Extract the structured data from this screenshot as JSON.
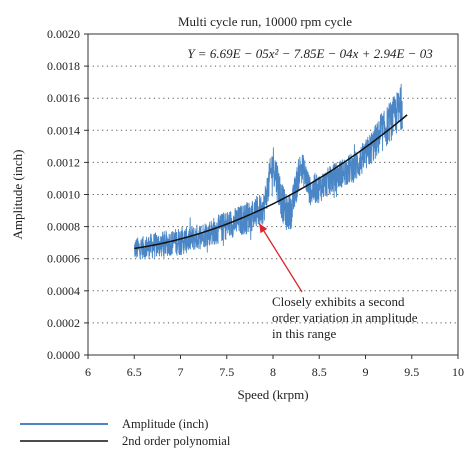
{
  "chart_data": {
    "type": "line",
    "title": "Multi cycle run, 10000 rpm cycle",
    "xlabel": "Speed (krpm)",
    "ylabel": "Amplitude (inch)",
    "xlim": [
      6,
      10
    ],
    "ylim": [
      0,
      0.002
    ],
    "xticks": [
      "6",
      "6.5",
      "7",
      "7.5",
      "8",
      "8.5",
      "9",
      "9.5",
      "10"
    ],
    "yticks": [
      "0.0000",
      "0.0002",
      "0.0004",
      "0.0006",
      "0.0008",
      "0.0010",
      "0.0012",
      "0.0014",
      "0.0016",
      "0.0018",
      "0.0020"
    ],
    "grid": "horizontal dotted",
    "legend_position": "below",
    "equation": "Y = 6.69E − 05x² − 7.85E − 04x + 2.94E − 03",
    "annotation": {
      "lines": [
        "Closely exhibits a second",
        "order variation in amplitude",
        "in this range"
      ],
      "arrow_color": "#d9282f",
      "target": {
        "x": 7.85,
        "y": 0.00082
      }
    },
    "series": [
      {
        "name": "Amplitude (inch)",
        "color": "#4a86c5",
        "style": "noisy measured signal",
        "envelope": {
          "x": [
            6.5,
            6.6,
            6.7,
            6.8,
            6.9,
            7.0,
            7.1,
            7.2,
            7.3,
            7.4,
            7.5,
            7.6,
            7.7,
            7.8,
            7.9,
            8.0,
            8.05,
            8.1,
            8.15,
            8.2,
            8.25,
            8.3,
            8.35,
            8.4,
            8.5,
            8.6,
            8.7,
            8.8,
            8.9,
            9.0,
            9.1,
            9.2,
            9.3,
            9.4
          ],
          "center": [
            0.00066,
            0.00067,
            0.00068,
            0.00069,
            0.0007,
            0.00071,
            0.00072,
            0.00074,
            0.00076,
            0.00078,
            0.00081,
            0.00083,
            0.00085,
            0.00088,
            0.00092,
            0.0012,
            0.00108,
            0.00095,
            0.00088,
            0.0009,
            0.00105,
            0.00118,
            0.00112,
            0.00102,
            0.00104,
            0.00108,
            0.00112,
            0.00115,
            0.00118,
            0.00124,
            0.00132,
            0.0014,
            0.00148,
            0.00155
          ],
          "spread": [
            7e-05,
            7e-05,
            8e-05,
            8e-05,
            8e-05,
            9e-05,
            8e-05,
            8e-05,
            8e-05,
            9e-05,
            9e-05,
            9e-05,
            0.0001,
            0.0001,
            0.0001,
            0.00012,
            0.00013,
            0.00012,
            0.00011,
            0.00011,
            0.00011,
            0.0001,
            0.0001,
            9e-05,
            9e-05,
            9e-05,
            9e-05,
            9e-05,
            0.0001,
            0.0001,
            0.00011,
            0.00012,
            0.00013,
            0.00014
          ]
        }
      },
      {
        "name": "2nd order polynomial",
        "color": "#111111",
        "coefficients": {
          "a": 6.69e-05,
          "b": -0.000785,
          "c": 0.00294
        },
        "x_range": [
          6.5,
          9.45
        ]
      }
    ]
  }
}
